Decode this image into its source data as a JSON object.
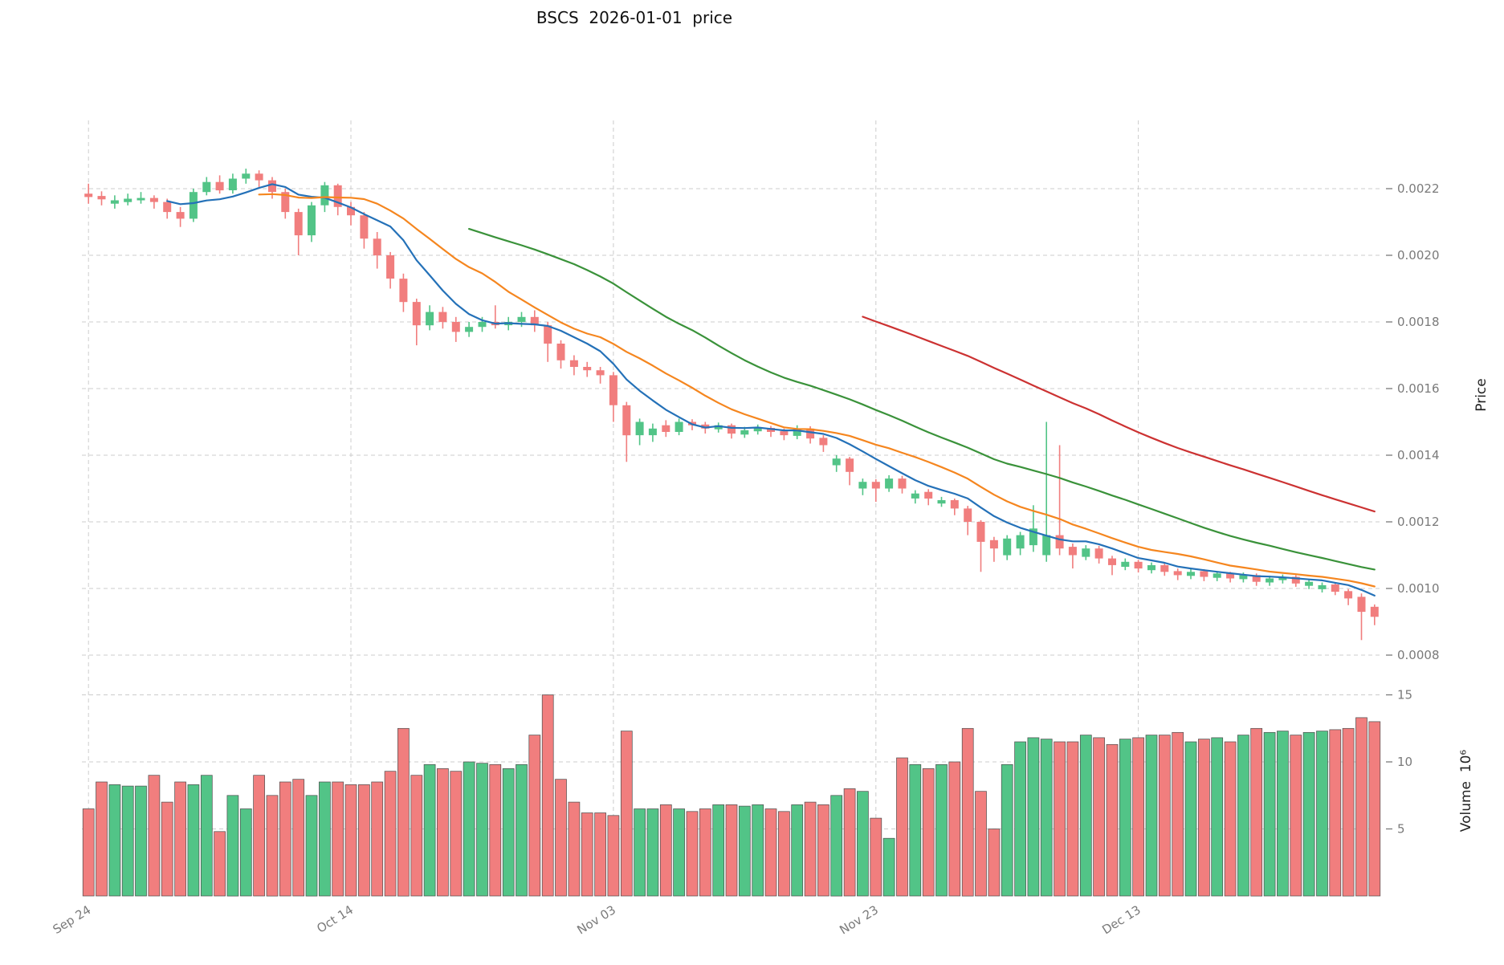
{
  "chart_data": {
    "type": "candlestick",
    "title": "BSCS  2026-01-01  price",
    "ylabel_price": "Price",
    "ylabel_volume": "Volume  10⁶",
    "legend_position": "none",
    "grid": true,
    "price_ticks": [
      0.0008,
      0.001,
      0.0012,
      0.0014,
      0.0016,
      0.0018,
      0.002,
      0.0022
    ],
    "volume_ticks": [
      5,
      10,
      15
    ],
    "x_ticks": [
      {
        "index": 0,
        "label": "Sep 24"
      },
      {
        "index": 20,
        "label": "Oct 14"
      },
      {
        "index": 40,
        "label": "Nov 03"
      },
      {
        "index": 60,
        "label": "Nov 23"
      },
      {
        "index": 80,
        "label": "Dec 13"
      }
    ],
    "moving_averages": [
      {
        "name": "ma-short",
        "window": 7,
        "color": "#2471b8"
      },
      {
        "name": "ma-medium",
        "window": 14,
        "color": "#f5861f"
      },
      {
        "name": "ma-long",
        "window": 30,
        "color": "#3a923a"
      },
      {
        "name": "ma-longest",
        "window": 60,
        "color": "#cc3232"
      }
    ],
    "colors": {
      "up": "#52c487",
      "down": "#f17e7e",
      "bar_edge": "#4d4d4d",
      "grid": "#cccccc",
      "tick_text": "#7a7a7a",
      "title_text": "#111111",
      "background": "#ffffff"
    },
    "candles_columns": [
      "date",
      "open",
      "high",
      "low",
      "close",
      "volume_millions"
    ],
    "candles": [
      [
        "Sep 24",
        0.002185,
        0.002215,
        0.002155,
        0.002175,
        6.5
      ],
      [
        "Sep 25",
        0.002178,
        0.002192,
        0.00215,
        0.002168,
        8.5
      ],
      [
        "Sep 26",
        0.002155,
        0.00218,
        0.00214,
        0.002165,
        8.3
      ],
      [
        "Sep 27",
        0.00216,
        0.002185,
        0.00215,
        0.00217,
        8.2
      ],
      [
        "Sep 28",
        0.002165,
        0.00219,
        0.002155,
        0.002172,
        8.2
      ],
      [
        "Sep 29",
        0.002172,
        0.00218,
        0.00214,
        0.00216,
        9.0
      ],
      [
        "Sep 30",
        0.00216,
        0.00217,
        0.00211,
        0.00213,
        7.0
      ],
      [
        "Oct 01",
        0.00213,
        0.002145,
        0.002085,
        0.00211,
        8.5
      ],
      [
        "Oct 02",
        0.00211,
        0.0022,
        0.0021,
        0.00219,
        8.3
      ],
      [
        "Oct 03",
        0.00219,
        0.002235,
        0.00218,
        0.00222,
        9.0
      ],
      [
        "Oct 04",
        0.00222,
        0.00224,
        0.002185,
        0.002195,
        4.8
      ],
      [
        "Oct 05",
        0.002195,
        0.002245,
        0.002185,
        0.00223,
        7.5
      ],
      [
        "Oct 06",
        0.00223,
        0.00226,
        0.002215,
        0.002245,
        6.5
      ],
      [
        "Oct 07",
        0.002245,
        0.002255,
        0.002205,
        0.002225,
        9.0
      ],
      [
        "Oct 08",
        0.002225,
        0.002235,
        0.00217,
        0.00219,
        7.5
      ],
      [
        "Oct 09",
        0.00219,
        0.0022,
        0.00211,
        0.00213,
        8.5
      ],
      [
        "Oct 10",
        0.00213,
        0.00214,
        0.002,
        0.00206,
        8.7
      ],
      [
        "Oct 11",
        0.00206,
        0.00216,
        0.00204,
        0.00215,
        7.5
      ],
      [
        "Oct 12",
        0.00215,
        0.00222,
        0.00213,
        0.00221,
        8.5
      ],
      [
        "Oct 13",
        0.00221,
        0.002215,
        0.00212,
        0.002145,
        8.5
      ],
      [
        "Oct 14",
        0.002145,
        0.00216,
        0.00209,
        0.00212,
        8.3
      ],
      [
        "Oct 15",
        0.00212,
        0.00213,
        0.00202,
        0.00205,
        8.3
      ],
      [
        "Oct 16",
        0.00205,
        0.00207,
        0.00196,
        0.002,
        8.5
      ],
      [
        "Oct 17",
        0.002,
        0.00201,
        0.0019,
        0.00193,
        9.3
      ],
      [
        "Oct 18",
        0.00193,
        0.001945,
        0.00183,
        0.00186,
        12.5
      ],
      [
        "Oct 19",
        0.00186,
        0.00187,
        0.00173,
        0.00179,
        9.0
      ],
      [
        "Oct 20",
        0.00179,
        0.00185,
        0.001775,
        0.00183,
        9.8
      ],
      [
        "Oct 21",
        0.00183,
        0.001845,
        0.00178,
        0.0018,
        9.5
      ],
      [
        "Oct 22",
        0.0018,
        0.001815,
        0.00174,
        0.00177,
        9.3
      ],
      [
        "Oct 23",
        0.00177,
        0.0018,
        0.001755,
        0.001785,
        10.0
      ],
      [
        "Oct 24",
        0.001785,
        0.001815,
        0.00177,
        0.0018,
        9.9
      ],
      [
        "Oct 25",
        0.0018,
        0.00185,
        0.00178,
        0.00179,
        9.8
      ],
      [
        "Oct 26",
        0.00179,
        0.001815,
        0.001775,
        0.0018,
        9.5
      ],
      [
        "Oct 27",
        0.0018,
        0.00183,
        0.001785,
        0.001815,
        9.8
      ],
      [
        "Oct 28",
        0.001815,
        0.001835,
        0.00177,
        0.00179,
        12.0
      ],
      [
        "Oct 29",
        0.00179,
        0.0018,
        0.00168,
        0.001735,
        15.0
      ],
      [
        "Oct 30",
        0.001735,
        0.001745,
        0.00166,
        0.001685,
        8.7
      ],
      [
        "Oct 31",
        0.001685,
        0.0017,
        0.00164,
        0.001665,
        7.0
      ],
      [
        "Nov 01",
        0.001665,
        0.00168,
        0.001635,
        0.001655,
        6.2
      ],
      [
        "Nov 02",
        0.001655,
        0.001665,
        0.001615,
        0.00164,
        6.2
      ],
      [
        "Nov 03",
        0.00164,
        0.00165,
        0.0015,
        0.00155,
        6.0
      ],
      [
        "Nov 04",
        0.00155,
        0.00156,
        0.00138,
        0.00146,
        12.3
      ],
      [
        "Nov 05",
        0.00146,
        0.00151,
        0.00143,
        0.0015,
        6.5
      ],
      [
        "Nov 06",
        0.00146,
        0.001495,
        0.00144,
        0.00148,
        6.5
      ],
      [
        "Nov 07",
        0.00149,
        0.001505,
        0.001455,
        0.00147,
        6.8
      ],
      [
        "Nov 08",
        0.00147,
        0.00151,
        0.00146,
        0.0015,
        6.5
      ],
      [
        "Nov 09",
        0.0015,
        0.001508,
        0.001475,
        0.00149,
        6.3
      ],
      [
        "Nov 10",
        0.001492,
        0.0015,
        0.001465,
        0.00148,
        6.5
      ],
      [
        "Nov 11",
        0.001478,
        0.001498,
        0.001468,
        0.00149,
        6.8
      ],
      [
        "Nov 12",
        0.00149,
        0.001495,
        0.00145,
        0.001465,
        6.8
      ],
      [
        "Nov 13",
        0.001462,
        0.001485,
        0.001452,
        0.001475,
        6.7
      ],
      [
        "Nov 14",
        0.001472,
        0.001492,
        0.001462,
        0.001482,
        6.8
      ],
      [
        "Nov 15",
        0.001482,
        0.001488,
        0.001455,
        0.00147,
        6.5
      ],
      [
        "Nov 16",
        0.001472,
        0.00148,
        0.001445,
        0.00146,
        6.3
      ],
      [
        "Nov 17",
        0.001458,
        0.00149,
        0.001448,
        0.00148,
        6.8
      ],
      [
        "Nov 18",
        0.00148,
        0.001487,
        0.001435,
        0.00145,
        7.0
      ],
      [
        "Nov 19",
        0.001452,
        0.00146,
        0.00141,
        0.00143,
        6.8
      ],
      [
        "Nov 20",
        0.00137,
        0.0014,
        0.00135,
        0.00139,
        7.5
      ],
      [
        "Nov 21",
        0.00139,
        0.001395,
        0.00131,
        0.00135,
        8.0
      ],
      [
        "Nov 22",
        0.0013,
        0.00133,
        0.00128,
        0.00132,
        7.8
      ],
      [
        "Nov 23",
        0.00132,
        0.001328,
        0.00126,
        0.0013,
        5.8
      ],
      [
        "Nov 24",
        0.0013,
        0.00134,
        0.00129,
        0.00133,
        4.3
      ],
      [
        "Nov 25",
        0.00133,
        0.001338,
        0.001285,
        0.0013,
        10.3
      ],
      [
        "Nov 26",
        0.00127,
        0.001295,
        0.001255,
        0.001285,
        9.8
      ],
      [
        "Nov 27",
        0.00129,
        0.001298,
        0.00125,
        0.00127,
        9.5
      ],
      [
        "Nov 28",
        0.001255,
        0.001275,
        0.001245,
        0.001265,
        9.8
      ],
      [
        "Nov 29",
        0.001265,
        0.00127,
        0.00122,
        0.00124,
        10.0
      ],
      [
        "Nov 30",
        0.00124,
        0.001248,
        0.00116,
        0.0012,
        12.5
      ],
      [
        "Dec 01",
        0.0012,
        0.001205,
        0.00105,
        0.00114,
        7.8
      ],
      [
        "Dec 02",
        0.001145,
        0.001155,
        0.00108,
        0.00112,
        5.0
      ],
      [
        "Dec 03",
        0.0011,
        0.00116,
        0.001085,
        0.00115,
        9.8
      ],
      [
        "Dec 04",
        0.00112,
        0.00117,
        0.0011,
        0.00116,
        11.5
      ],
      [
        "Dec 05",
        0.00113,
        0.00125,
        0.00111,
        0.00118,
        11.8
      ],
      [
        "Dec 06",
        0.0011,
        0.0015,
        0.00108,
        0.00116,
        11.7
      ],
      [
        "Dec 07",
        0.00116,
        0.00143,
        0.0011,
        0.00112,
        11.5
      ],
      [
        "Dec 08",
        0.001125,
        0.001135,
        0.00106,
        0.0011,
        11.5
      ],
      [
        "Dec 09",
        0.001095,
        0.00113,
        0.001085,
        0.00112,
        12.0
      ],
      [
        "Dec 10",
        0.00112,
        0.001128,
        0.001075,
        0.00109,
        11.8
      ],
      [
        "Dec 11",
        0.00109,
        0.001098,
        0.00104,
        0.00107,
        11.3
      ],
      [
        "Dec 12",
        0.001065,
        0.00109,
        0.001055,
        0.00108,
        11.7
      ],
      [
        "Dec 13",
        0.00108,
        0.001086,
        0.001048,
        0.00106,
        11.8
      ],
      [
        "Dec 14",
        0.001055,
        0.001078,
        0.001045,
        0.00107,
        12.0
      ],
      [
        "Dec 15",
        0.00107,
        0.001076,
        0.001038,
        0.00105,
        12.0
      ],
      [
        "Dec 16",
        0.001052,
        0.00106,
        0.001025,
        0.00104,
        12.2
      ],
      [
        "Dec 17",
        0.001038,
        0.001058,
        0.001028,
        0.00105,
        11.5
      ],
      [
        "Dec 18",
        0.001052,
        0.001058,
        0.001022,
        0.001035,
        11.7
      ],
      [
        "Dec 19",
        0.001032,
        0.001052,
        0.001022,
        0.001045,
        11.8
      ],
      [
        "Dec 20",
        0.001045,
        0.00105,
        0.001018,
        0.00103,
        11.5
      ],
      [
        "Dec 21",
        0.001028,
        0.001048,
        0.001018,
        0.00104,
        12.0
      ],
      [
        "Dec 22",
        0.00104,
        0.001045,
        0.001008,
        0.00102,
        12.5
      ],
      [
        "Dec 23",
        0.001018,
        0.001038,
        0.001008,
        0.00103,
        12.2
      ],
      [
        "Dec 24",
        0.001025,
        0.001042,
        0.001015,
        0.001035,
        12.3
      ],
      [
        "Dec 25",
        0.001035,
        0.00104,
        0.001005,
        0.001015,
        12.0
      ],
      [
        "Dec 26",
        0.001008,
        0.001028,
        0.000998,
        0.00102,
        12.2
      ],
      [
        "Dec 27",
        0.000998,
        0.001018,
        0.000988,
        0.00101,
        12.3
      ],
      [
        "Dec 28",
        0.001012,
        0.001018,
        0.00098,
        0.00099,
        12.4
      ],
      [
        "Dec 29",
        0.000992,
        0.000998,
        0.00095,
        0.00097,
        12.5
      ],
      [
        "Dec 30",
        0.000975,
        0.000985,
        0.000845,
        0.00093,
        13.3
      ],
      [
        "Dec 31",
        0.000945,
        0.000952,
        0.00089,
        0.000915,
        13.0
      ]
    ]
  }
}
